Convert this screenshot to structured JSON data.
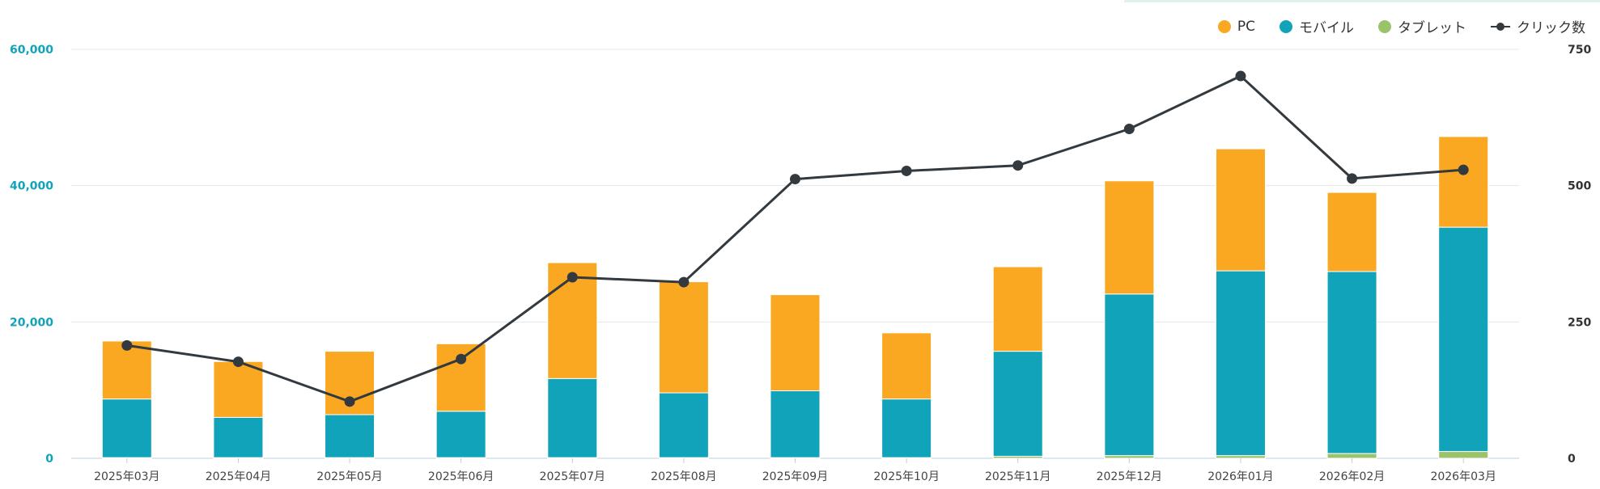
{
  "chart_data": {
    "type": "bar",
    "stacked": true,
    "categories": [
      "2025年03月",
      "2025年04月",
      "2025年05月",
      "2025年06月",
      "2025年07月",
      "2025年08月",
      "2025年09月",
      "2025年10月",
      "2025年11月",
      "2025年12月",
      "2026年01月",
      "2026年02月",
      "2026年03月"
    ],
    "series": [
      {
        "name": "タブレット",
        "type": "bar",
        "axis": "left",
        "color": "#9bc46a",
        "values": [
          100,
          100,
          100,
          100,
          100,
          100,
          100,
          100,
          300,
          400,
          400,
          700,
          1000
        ]
      },
      {
        "name": "モバイル",
        "type": "bar",
        "axis": "left",
        "color": "#11a3b9",
        "values": [
          8600,
          5900,
          6300,
          6800,
          11600,
          9500,
          9800,
          8600,
          15400,
          23700,
          27100,
          26700,
          32900
        ]
      },
      {
        "name": "PC",
        "type": "bar",
        "axis": "left",
        "color": "#faa722",
        "values": [
          8500,
          8200,
          9300,
          9900,
          17000,
          16300,
          14100,
          9700,
          12400,
          16600,
          17900,
          11600,
          13300
        ]
      },
      {
        "name": "クリック数",
        "type": "line",
        "axis": "right",
        "color": "#333a3f",
        "values": [
          207,
          177,
          104,
          182,
          332,
          323,
          512,
          527,
          537,
          604,
          701,
          513,
          529
        ]
      }
    ],
    "y_left": {
      "min": 0,
      "max": 60000,
      "ticks": [
        0,
        20000,
        40000,
        60000
      ],
      "tick_labels": [
        "0",
        "20,000",
        "40,000",
        "60,000"
      ],
      "color": "#11a3b9"
    },
    "y_right": {
      "min": 0,
      "max": 750,
      "ticks": [
        0,
        250,
        500,
        750
      ],
      "tick_labels": [
        "0",
        "250",
        "500",
        "750"
      ],
      "color": "#333333"
    },
    "grid": true,
    "legend_position": "top-right",
    "legend": [
      {
        "label": "PC",
        "color": "#faa722",
        "kind": "dot"
      },
      {
        "label": "モバイル",
        "color": "#11a3b9",
        "kind": "dot"
      },
      {
        "label": "タブレット",
        "color": "#9bc46a",
        "kind": "dot"
      },
      {
        "label": "クリック数",
        "color": "#333a3f",
        "kind": "line"
      }
    ]
  }
}
